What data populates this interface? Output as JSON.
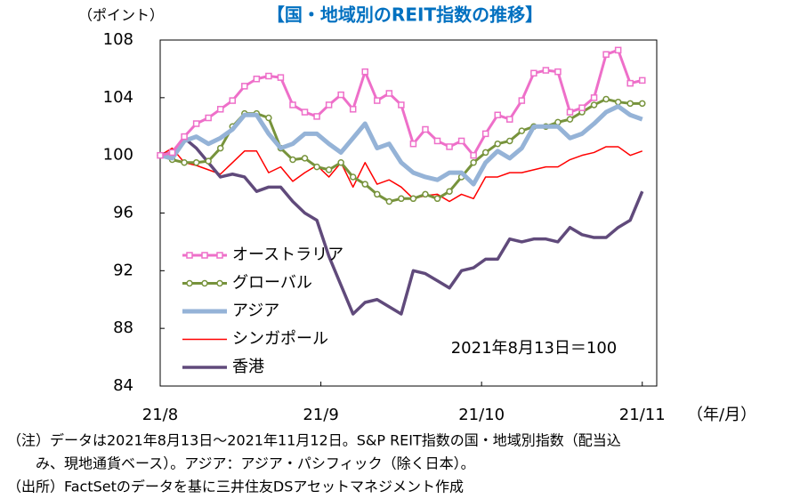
{
  "chart_data": {
    "type": "line",
    "title": "【国・地域別のREIT指数の推移】",
    "y_label": "（ポイント）",
    "x_label": "（年/月）",
    "annotation": "2021年8月13日＝100",
    "x": [
      0,
      0.075,
      0.15,
      0.225,
      0.3,
      0.375,
      0.45,
      0.525,
      0.6,
      0.675,
      0.75,
      0.825,
      0.9,
      0.975,
      1.05,
      1.125,
      1.2,
      1.275,
      1.35,
      1.425,
      1.5,
      1.575,
      1.65,
      1.725,
      1.8,
      1.875,
      1.95,
      2.025,
      2.1,
      2.175,
      2.25,
      2.325,
      2.4,
      2.475,
      2.55,
      2.625,
      2.7,
      2.775,
      2.85,
      2.925,
      3.0
    ],
    "xlim": [
      0,
      3.09
    ],
    "xticks": [
      {
        "value": 0,
        "label": "21/8"
      },
      {
        "value": 1,
        "label": "21/9"
      },
      {
        "value": 2,
        "label": "21/10"
      },
      {
        "value": 3,
        "label": "21/11"
      }
    ],
    "ylim": [
      84,
      108
    ],
    "yticks": [
      84,
      88,
      92,
      96,
      100,
      104,
      108
    ],
    "grid": false,
    "legend": "lower left",
    "series": [
      {
        "name": "オーストラリア",
        "color": "#ee6fc9",
        "width": 3,
        "marker": "square",
        "values": [
          100,
          100.2,
          101.3,
          102.2,
          102.6,
          103.2,
          103.8,
          104.8,
          105.3,
          105.5,
          105.4,
          103.5,
          103.0,
          102.7,
          103.5,
          104.2,
          103.2,
          105.8,
          103.8,
          104.3,
          103.5,
          100.8,
          101.8,
          101.0,
          100.6,
          101.0,
          100.0,
          101.5,
          102.8,
          102.5,
          103.8,
          105.7,
          105.9,
          105.8,
          103.0,
          103.3,
          104.0,
          107.0,
          107.3,
          105.0,
          105.2
        ]
      },
      {
        "name": "グローバル",
        "color": "#77933c",
        "width": 3,
        "marker": "circle",
        "values": [
          100,
          99.7,
          99.5,
          99.5,
          99.6,
          100.5,
          102.0,
          102.9,
          102.9,
          102.6,
          100.5,
          99.7,
          99.8,
          99.2,
          99.0,
          99.5,
          98.5,
          98.0,
          97.3,
          96.8,
          97.0,
          97.0,
          97.3,
          97.0,
          97.5,
          98.5,
          99.5,
          100.2,
          100.8,
          101.0,
          101.7,
          102.0,
          102.0,
          102.3,
          102.5,
          103.0,
          103.5,
          103.9,
          103.7,
          103.6,
          103.6
        ]
      },
      {
        "name": "アジア",
        "color": "#95b3d7",
        "width": 5,
        "marker": null,
        "values": [
          100,
          99.8,
          101.0,
          101.3,
          100.8,
          101.2,
          101.8,
          102.8,
          102.8,
          101.5,
          100.5,
          100.8,
          101.5,
          101.5,
          100.8,
          100.2,
          101.2,
          102.2,
          100.5,
          100.8,
          99.5,
          98.8,
          98.5,
          98.3,
          98.8,
          98.8,
          98.0,
          99.5,
          100.3,
          99.8,
          100.5,
          102.0,
          102.0,
          102.0,
          101.2,
          101.5,
          102.2,
          103.0,
          103.4,
          102.8,
          102.5
        ]
      },
      {
        "name": "シンガポール",
        "color": "#ff0000",
        "width": 1.5,
        "marker": null,
        "values": [
          100,
          100.5,
          99.5,
          99.3,
          99.0,
          98.7,
          99.5,
          100.3,
          100.3,
          98.8,
          99.2,
          98.2,
          98.8,
          99.3,
          98.5,
          99.5,
          97.8,
          99.5,
          98.0,
          98.3,
          97.8,
          97.0,
          97.2,
          97.3,
          96.8,
          97.3,
          97.0,
          98.5,
          98.5,
          98.8,
          98.8,
          99.0,
          99.2,
          99.2,
          99.7,
          100.0,
          100.2,
          100.6,
          100.6,
          100.0,
          100.3
        ]
      },
      {
        "name": "香港",
        "color": "#604a7b",
        "width": 3.5,
        "marker": null,
        "values": [
          100,
          100.2,
          101.2,
          100.5,
          99.5,
          98.5,
          98.7,
          98.5,
          97.5,
          97.8,
          97.8,
          96.8,
          96.0,
          95.5,
          93.0,
          91.0,
          89.0,
          89.8,
          90.0,
          89.5,
          89.0,
          92.0,
          91.8,
          91.3,
          90.8,
          92.0,
          92.2,
          92.8,
          92.8,
          94.2,
          94.0,
          94.2,
          94.2,
          94.0,
          95.0,
          94.5,
          94.3,
          94.3,
          95.0,
          95.5,
          97.5
        ]
      }
    ]
  },
  "notes": [
    "（注）データは2021年8月13日～2021年11月12日。S&P REIT指数の国・地域別指数（配当込",
    "み、現地通貨ベース）。アジア：アジア・パシフィック（除く日本）。",
    "（出所）FactSetのデータを基に三井住友DSアセットマネジメント作成"
  ]
}
